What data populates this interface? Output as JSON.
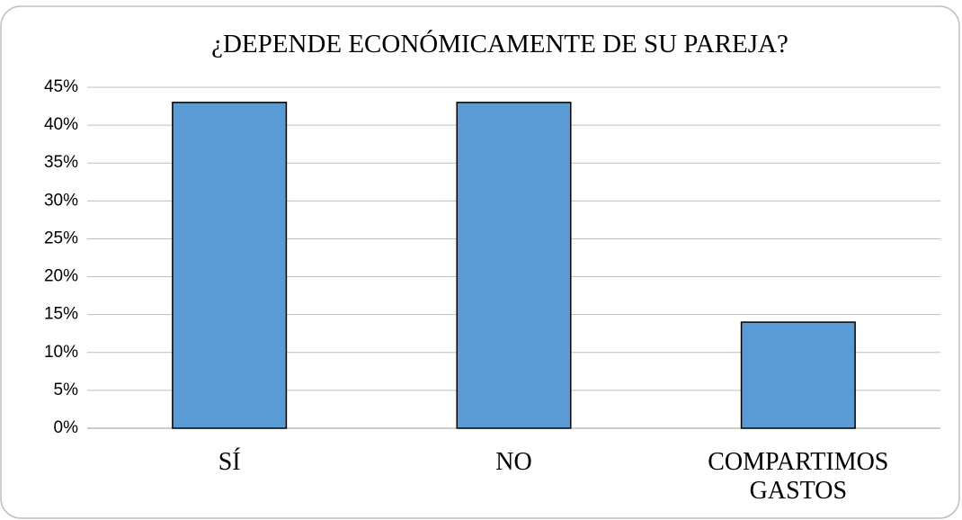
{
  "chart_data": {
    "type": "bar",
    "title": "¿DEPENDE ECONÓMICAMENTE DE SU PAREJA?",
    "categories": [
      "SÍ",
      "NO",
      "COMPARTIMOS GASTOS"
    ],
    "values": [
      43,
      43,
      14
    ],
    "color": "#5b9bd5",
    "ylim": [
      0,
      45
    ],
    "yticks": [
      {
        "value": 0,
        "label": "0%"
      },
      {
        "value": 5,
        "label": "5%"
      },
      {
        "value": 10,
        "label": "10%"
      },
      {
        "value": 15,
        "label": "15%"
      },
      {
        "value": 20,
        "label": "20%"
      },
      {
        "value": 25,
        "label": "25%"
      },
      {
        "value": 30,
        "label": "30%"
      },
      {
        "value": 35,
        "label": "35%"
      },
      {
        "value": 40,
        "label": "40%"
      },
      {
        "value": 45,
        "label": "45%"
      }
    ],
    "grid": true
  }
}
